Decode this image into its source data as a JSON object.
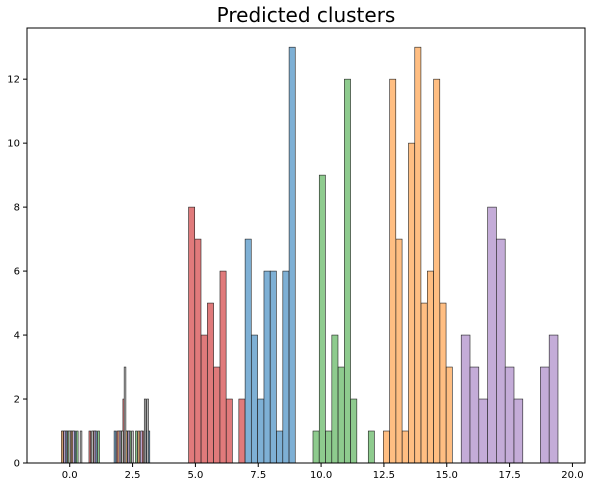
{
  "chart_data": {
    "type": "bar",
    "title": "Predicted clusters",
    "xlabel": "",
    "ylabel": "",
    "xlim": [
      -1.7,
      20.5
    ],
    "ylim": [
      0,
      13.6
    ],
    "grid": false,
    "x_ticks": [
      {
        "value": 0.0,
        "label": "0.0"
      },
      {
        "value": 2.5,
        "label": "2.5"
      },
      {
        "value": 5.0,
        "label": "5.0"
      },
      {
        "value": 7.5,
        "label": "7.5"
      },
      {
        "value": 10.0,
        "label": "10.0"
      },
      {
        "value": 12.5,
        "label": "12.5"
      },
      {
        "value": 15.0,
        "label": "15.0"
      },
      {
        "value": 17.5,
        "label": "17.5"
      },
      {
        "value": 20.0,
        "label": "20.0"
      }
    ],
    "y_ticks": [
      {
        "value": 0,
        "label": "0"
      },
      {
        "value": 2,
        "label": "2"
      },
      {
        "value": 4,
        "label": "4"
      },
      {
        "value": 6,
        "label": "6"
      },
      {
        "value": 8,
        "label": "8"
      },
      {
        "value": 10,
        "label": "10"
      },
      {
        "value": 12,
        "label": "12"
      }
    ],
    "series": [
      {
        "color": "#e07a7b",
        "bin_width": 0.245,
        "x": [
          4.85,
          5.1,
          5.35,
          5.6,
          5.85,
          6.1,
          6.35,
          6.85
        ],
        "values": [
          8,
          7,
          4,
          5,
          3,
          6,
          2,
          2
        ]
      },
      {
        "color": "#7eb0d5",
        "bin_width": 0.245,
        "x": [
          7.1,
          7.35,
          7.6,
          7.85,
          8.1,
          8.35,
          8.6,
          8.85,
          9.1
        ],
        "values": [
          7,
          4,
          2,
          6,
          6,
          1,
          6,
          13,
          0
        ]
      },
      {
        "color": "#8ecb8e",
        "bin_width": 0.245,
        "x": [
          9.8,
          10.05,
          10.3,
          10.55,
          10.8,
          11.05,
          11.3,
          12.0
        ],
        "values": [
          1,
          9,
          1,
          4,
          3,
          12,
          2,
          1
        ]
      },
      {
        "color": "#ffbe82",
        "bin_width": 0.245,
        "x": [
          12.6,
          12.85,
          13.1,
          13.35,
          13.6,
          13.85,
          14.1,
          14.35,
          14.6,
          14.85,
          15.1,
          15.35
        ],
        "values": [
          1,
          12,
          7,
          1,
          10,
          13,
          5,
          6,
          12,
          5,
          3,
          0
        ]
      },
      {
        "color": "#c4acd8",
        "bin_width": 0.35,
        "x": [
          15.75,
          16.1,
          16.45,
          16.8,
          17.15,
          17.5,
          17.85,
          18.9,
          19.25
        ],
        "values": [
          4,
          3,
          2,
          8,
          7,
          3,
          2,
          3,
          4
        ]
      },
      {
        "color": "#e07a7b",
        "bin_width": 0.07,
        "x": [
          -0.25,
          -0.1,
          0.05,
          0.8,
          1.9,
          2.15,
          2.9
        ],
        "values": [
          1,
          1,
          1,
          1,
          1,
          2,
          1
        ]
      },
      {
        "color": "#7eb0d5",
        "bin_width": 0.07,
        "x": [
          -0.15,
          0.2,
          1.05,
          1.8,
          2.3,
          3.05,
          3.15
        ],
        "values": [
          1,
          1,
          1,
          1,
          1,
          1,
          1
        ]
      },
      {
        "color": "#8ecb8e",
        "bin_width": 0.07,
        "x": [
          -0.05,
          0.3,
          1.15,
          2.05,
          2.4,
          2.65
        ],
        "values": [
          1,
          1,
          1,
          1,
          1,
          1
        ]
      },
      {
        "color": "#ffbe82",
        "bin_width": 0.07,
        "x": [
          -0.3,
          0.1,
          0.95,
          1.95,
          2.25,
          2.75
        ],
        "values": [
          1,
          1,
          1,
          1,
          1,
          1
        ]
      },
      {
        "color": "#c4acd8",
        "bin_width": 0.07,
        "x": [
          -0.2,
          0.15,
          1.0,
          2.0,
          2.35,
          2.85
        ],
        "values": [
          1,
          1,
          1,
          1,
          1,
          1
        ]
      },
      {
        "color": "#bdbdbd",
        "bin_width": 0.07,
        "x": [
          0.0,
          0.45,
          0.9,
          2.1,
          2.2,
          2.5,
          3.0,
          3.1
        ],
        "values": [
          1,
          1,
          1,
          1,
          3,
          1,
          2,
          2
        ]
      }
    ]
  }
}
